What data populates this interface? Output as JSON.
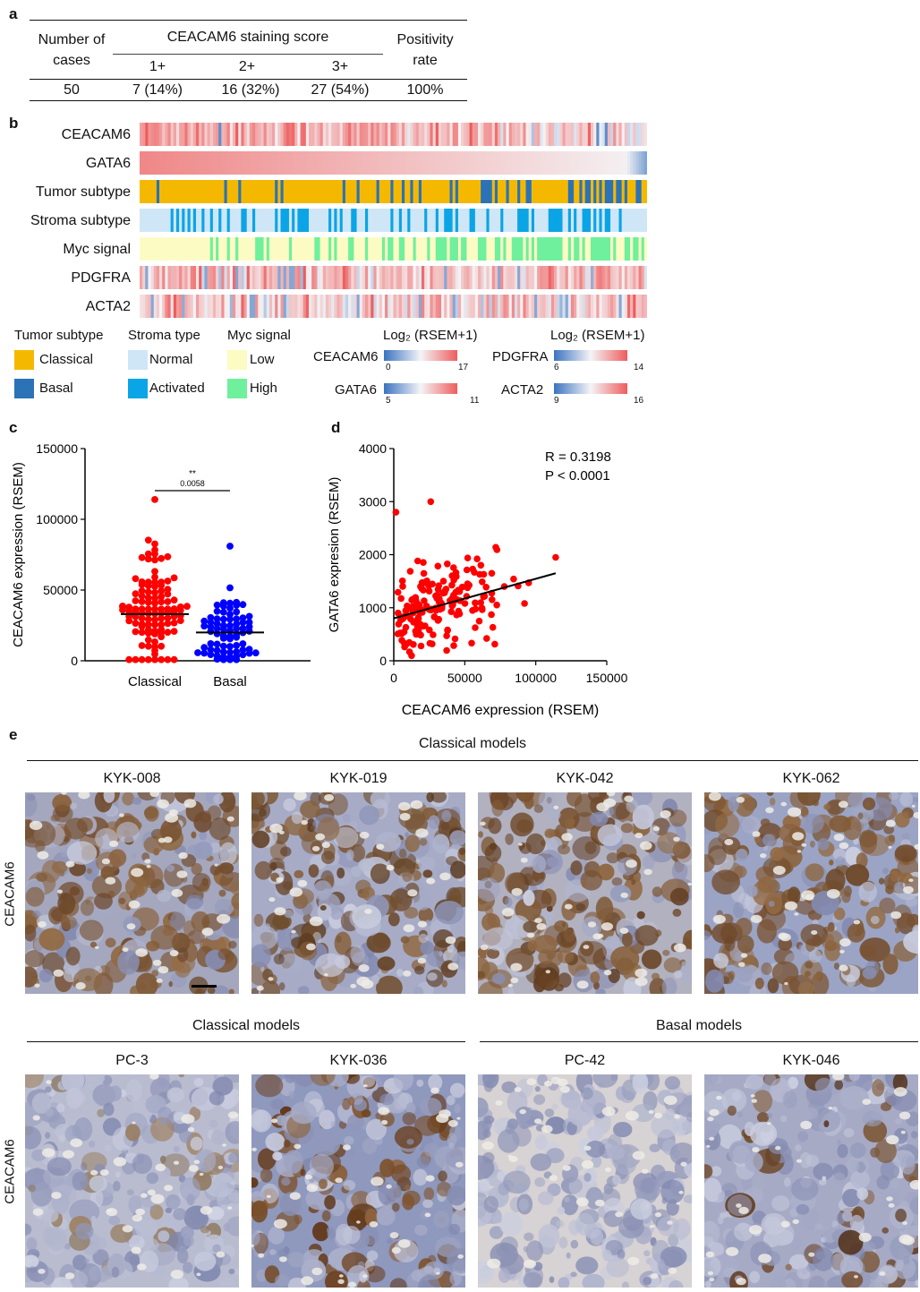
{
  "panel_labels": {
    "a": "a",
    "b": "b",
    "c": "c",
    "d": "d",
    "e": "e"
  },
  "table_a": {
    "col_cases": "Number of cases",
    "col_score_group": "CEACAM6 staining score",
    "col_scores": [
      "1+",
      "2+",
      "3+"
    ],
    "col_positivity": "Positivity rate",
    "row": {
      "cases": "50",
      "s1": "7 (14%)",
      "s2": "16 (32%)",
      "s3": "27 (54%)",
      "positivity": "100%"
    }
  },
  "heatmap_b": {
    "rows": [
      "CEACAM6",
      "GATA6",
      "Tumor subtype",
      "Stroma subtype",
      "Myc signal",
      "PDGFRA",
      "ACTA2"
    ],
    "colors": {
      "classical": "#f5b800",
      "basal": "#2b73b6",
      "normal": "#cfe6f7",
      "activated": "#0aa5e6",
      "low": "#fdfbc4",
      "high": "#6ff09c",
      "gradient_low": "#3b73c0",
      "gradient_mid": "#f4f4f6",
      "gradient_high": "#ee5d5d"
    },
    "legend": {
      "tumor": {
        "title": "Tumor subtype",
        "items": [
          "Classical",
          "Basal"
        ]
      },
      "stroma": {
        "title": "Stroma type",
        "items": [
          "Normal",
          "Activated"
        ]
      },
      "myc": {
        "title": "Myc signal",
        "items": [
          "Low",
          "High"
        ]
      },
      "scale_title": "Log₂ (RSEM+1)",
      "scales": [
        {
          "name": "CEACAM6",
          "min": "0",
          "max": "17"
        },
        {
          "name": "GATA6",
          "min": "5",
          "max": "11"
        },
        {
          "name": "PDGFRA",
          "min": "6",
          "max": "14"
        },
        {
          "name": "ACTA2",
          "min": "9",
          "max": "16"
        }
      ]
    }
  },
  "chart_data": [
    {
      "type": "scatter",
      "panel": "c",
      "ylabel": "CEACAM6 expression (RSEM)",
      "categories": [
        "Classical",
        "Basal"
      ],
      "ylim": [
        0,
        150000
      ],
      "yticks": [
        "0",
        "50000",
        "100000",
        "150000"
      ],
      "series": [
        {
          "name": "Classical",
          "color": "#ff0000",
          "median": 33000,
          "max": 114000,
          "n": 110
        },
        {
          "name": "Basal",
          "color": "#0000ff",
          "median": 20000,
          "max": 81000,
          "n": 75
        }
      ],
      "significance": {
        "stars": "**",
        "p": "0.0058"
      }
    },
    {
      "type": "scatter",
      "panel": "d",
      "xlabel": "CEACAM6 expression (RSEM)",
      "ylabel": "GATA6 expresion (RSEM)",
      "xlim": [
        0,
        150000
      ],
      "ylim": [
        0,
        4000
      ],
      "xticks": [
        "0",
        "50000",
        "100000",
        "150000"
      ],
      "yticks": [
        "0",
        "1000",
        "2000",
        "3000",
        "4000"
      ],
      "color": "#ff0000",
      "fit": {
        "x0": 0,
        "y0": 800,
        "x1": 114000,
        "y1": 1650
      },
      "annotations": [
        "R = 0.3198",
        "P < 0.0001"
      ]
    }
  ],
  "panel_e": {
    "row1_group": "Classical models",
    "row2_group_left": "Classical models",
    "row2_group_right": "Basal models",
    "stain_label": "CEACAM6",
    "models_row1": [
      "KYK-008",
      "KYK-019",
      "KYK-042",
      "KYK-062"
    ],
    "models_row2": [
      "PC-3",
      "KYK-036",
      "PC-42",
      "KYK-046"
    ]
  }
}
